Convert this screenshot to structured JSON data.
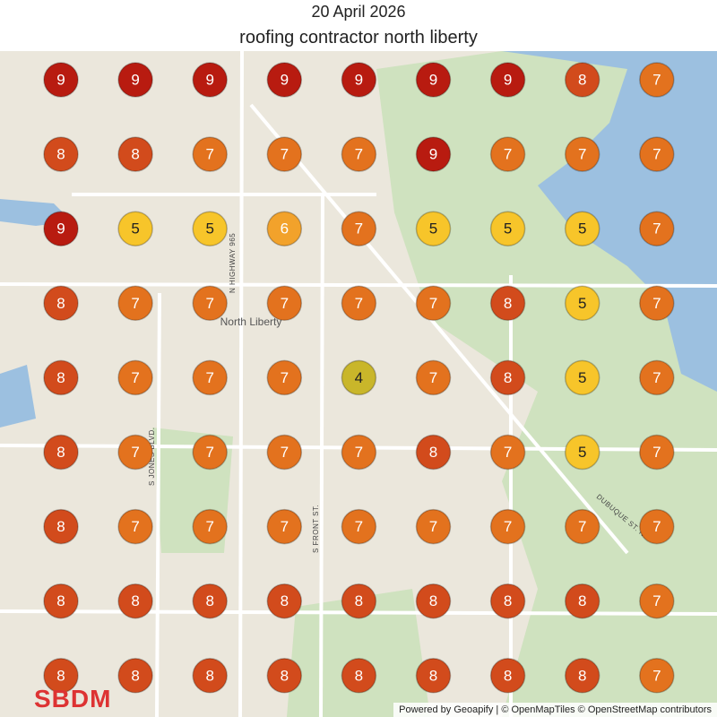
{
  "header": {
    "date": "20 April 2026",
    "title": "roofing contractor north liberty"
  },
  "grid": {
    "rows": [
      [
        9,
        9,
        9,
        9,
        9,
        9,
        9,
        8,
        7
      ],
      [
        8,
        8,
        7,
        7,
        7,
        9,
        7,
        7,
        7
      ],
      [
        9,
        5,
        5,
        6,
        7,
        5,
        5,
        5,
        7
      ],
      [
        8,
        7,
        7,
        7,
        7,
        7,
        8,
        5,
        7
      ],
      [
        8,
        7,
        7,
        7,
        4,
        7,
        8,
        5,
        7
      ],
      [
        8,
        7,
        7,
        7,
        7,
        8,
        7,
        5,
        7
      ],
      [
        8,
        7,
        7,
        7,
        7,
        7,
        7,
        7,
        7
      ],
      [
        8,
        8,
        8,
        8,
        8,
        8,
        8,
        8,
        7
      ],
      [
        8,
        8,
        8,
        8,
        8,
        8,
        8,
        8,
        7
      ]
    ],
    "marker_colors": {
      "4": "#c9b62a",
      "5": "#f7c52a",
      "6": "#f2a22b",
      "7": "#e3721e",
      "8": "#d24b1c",
      "9": "#b81b10"
    }
  },
  "map_labels": {
    "town": "North Liberty",
    "highway": "N HIGHWAY 965",
    "jones": "S JONES BLVD.",
    "front": "S FRONT ST.",
    "dubuque": "DUBUQUE ST. NE"
  },
  "footer": {
    "logo": "SBDM",
    "attribution": "Powered by Geoapify | © OpenMapTiles © OpenStreetMap contributors"
  }
}
